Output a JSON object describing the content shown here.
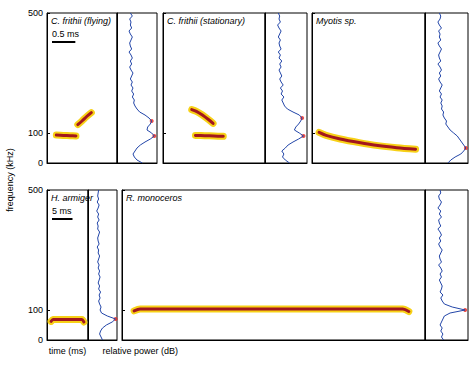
{
  "chart_data": [
    {
      "type": "spectrogram",
      "title": "C. frithii (flying)",
      "xlim": [
        0,
        1.5
      ],
      "ylim": [
        0,
        500
      ],
      "yticks": [
        0,
        100,
        500
      ],
      "tick_labels": "y",
      "scale_bar": {
        "length": 0.5,
        "label": "0.5 ms"
      },
      "call": {
        "color": "#a3171d",
        "segments": [
          {
            "time": [
              0.2,
              0.35,
              0.5,
              0.62
            ],
            "freq": [
              93,
              92,
              91,
              90
            ]
          },
          {
            "time": [
              0.66,
              0.75,
              0.85,
              0.95
            ],
            "freq": [
              128,
              140,
              155,
              168
            ]
          }
        ]
      },
      "spectrum": {
        "color": "#2346a8",
        "xlim": [
          -60,
          0
        ],
        "freq": [
          0,
          10,
          20,
          30,
          40,
          50,
          60,
          70,
          80,
          90,
          100,
          110,
          120,
          130,
          140,
          150,
          160,
          170,
          180,
          190,
          200,
          210,
          220,
          230,
          240,
          250,
          260,
          270,
          280,
          290,
          300,
          310,
          320,
          330,
          340,
          350,
          360,
          370,
          380,
          390,
          400,
          410,
          420,
          430,
          440,
          450,
          460,
          470,
          480,
          490,
          500
        ],
        "power": [
          -22,
          -30,
          -34,
          -36,
          -33,
          -30,
          -25,
          -18,
          -10,
          -4,
          -8,
          -15,
          -14,
          -10,
          -8,
          -12,
          -18,
          -26,
          -30,
          -33,
          -35,
          -34,
          -37,
          -35,
          -38,
          -36,
          -39,
          -37,
          -40,
          -38,
          -36,
          -39,
          -41,
          -38,
          -40,
          -37,
          -39,
          -42,
          -38,
          -40,
          -41,
          -39,
          -37,
          -40,
          -42,
          -38,
          -40,
          -39,
          -41,
          -37,
          -40
        ],
        "peaks": {
          "color": "#e8251e",
          "power": [
            -4,
            -8
          ],
          "freq": [
            90,
            140
          ]
        }
      }
    },
    {
      "type": "spectrogram",
      "title": "C. frithii (stationary)",
      "xlim": [
        0,
        2.2
      ],
      "ylim": [
        0,
        500
      ],
      "yticks": [
        0,
        100,
        500
      ],
      "tick_labels": false,
      "call": {
        "color": "#a3171d",
        "segments": [
          {
            "time": [
              0.62,
              0.72,
              0.85,
              0.98,
              1.08
            ],
            "freq": [
              178,
              172,
              160,
              145,
              132
            ]
          },
          {
            "time": [
              0.7,
              0.9,
              1.1,
              1.3
            ],
            "freq": [
              92,
              91,
              90,
              89
            ]
          }
        ]
      },
      "spectrum": {
        "color": "#2346a8",
        "xlim": [
          -60,
          0
        ],
        "freq": [
          0,
          10,
          20,
          30,
          40,
          50,
          60,
          70,
          80,
          90,
          100,
          110,
          120,
          130,
          140,
          150,
          160,
          170,
          180,
          190,
          200,
          210,
          220,
          230,
          240,
          250,
          260,
          270,
          280,
          290,
          300,
          310,
          320,
          330,
          340,
          350,
          360,
          370,
          380,
          390,
          400,
          410,
          420,
          430,
          440,
          450,
          460,
          470,
          480,
          490,
          500
        ],
        "power": [
          -25,
          -31,
          -35,
          -33,
          -36,
          -31,
          -27,
          -20,
          -12,
          -5,
          -11,
          -18,
          -16,
          -12,
          -9,
          -7,
          -11,
          -20,
          -28,
          -32,
          -34,
          -36,
          -33,
          -37,
          -35,
          -38,
          -34,
          -37,
          -39,
          -36,
          -38,
          -40,
          -37,
          -39,
          -36,
          -40,
          -38,
          -41,
          -37,
          -39,
          -40,
          -38,
          -41,
          -39,
          -37,
          -40,
          -42,
          -38,
          -40,
          -39,
          -41
        ],
        "peaks": {
          "color": "#e8251e",
          "power": [
            -5,
            -7
          ],
          "freq": [
            90,
            150
          ]
        }
      }
    },
    {
      "type": "spectrogram",
      "title": "Myotis sp.",
      "xlim": [
        0,
        2.4
      ],
      "ylim": [
        0,
        500
      ],
      "yticks": [
        0,
        100,
        500
      ],
      "tick_labels": false,
      "call": {
        "color": "#a3171d",
        "segments": [
          {
            "time": [
              0.15,
              0.3,
              0.6,
              1.0,
              1.4,
              1.8,
              2.2
            ],
            "freq": [
              102,
              92,
              80,
              68,
              58,
              51,
              46
            ]
          }
        ]
      },
      "spectrum": {
        "color": "#2346a8",
        "xlim": [
          -60,
          0
        ],
        "freq": [
          0,
          10,
          20,
          30,
          40,
          50,
          60,
          70,
          80,
          90,
          100,
          110,
          120,
          130,
          140,
          150,
          160,
          170,
          180,
          190,
          200,
          210,
          220,
          230,
          240,
          250,
          260,
          270,
          280,
          290,
          300,
          310,
          320,
          330,
          340,
          350,
          360,
          370,
          380,
          390,
          400,
          410,
          420,
          430,
          440,
          450,
          460,
          470,
          480,
          490,
          500
        ],
        "power": [
          -28,
          -24,
          -18,
          -10,
          -6,
          -3,
          -6,
          -9,
          -12,
          -15,
          -20,
          -25,
          -28,
          -31,
          -30,
          -33,
          -35,
          -34,
          -37,
          -36,
          -38,
          -36,
          -39,
          -37,
          -40,
          -38,
          -36,
          -39,
          -41,
          -38,
          -40,
          -37,
          -39,
          -42,
          -38,
          -40,
          -41,
          -39,
          -37,
          -40,
          -42,
          -38,
          -40,
          -39,
          -41,
          -37,
          -40,
          -42,
          -39,
          -38,
          -40
        ],
        "peaks": {
          "color": "#e8251e",
          "power": [
            -3
          ],
          "freq": [
            50
          ]
        }
      }
    },
    {
      "type": "spectrogram",
      "title": "H. armiger",
      "xlim": [
        0,
        10
      ],
      "ylim": [
        0,
        500
      ],
      "yticks": [
        0,
        100,
        500
      ],
      "tick_labels": "y",
      "xlabel": "time (ms)",
      "spectrum_xlabel": "relative power (dB)",
      "ylabel": "frequency (kHz)",
      "scale_bar": {
        "length": 5,
        "label": "5 ms"
      },
      "call": {
        "color": "#a3171d",
        "segments": [
          {
            "time": [
              1.0,
              1.5,
              3,
              5,
              7,
              8.5,
              9.0
            ],
            "freq": [
              62,
              68,
              68.5,
              68.5,
              68.5,
              68,
              60
            ]
          }
        ]
      },
      "spectrum": {
        "color": "#2346a8",
        "xlim": [
          -60,
          0
        ],
        "freq": [
          0,
          10,
          20,
          30,
          40,
          50,
          60,
          70,
          80,
          90,
          100,
          110,
          120,
          130,
          140,
          150,
          160,
          170,
          180,
          190,
          200,
          210,
          220,
          230,
          240,
          250,
          260,
          270,
          280,
          290,
          300,
          310,
          320,
          330,
          340,
          350,
          360,
          370,
          380,
          390,
          400,
          410,
          420,
          430,
          440,
          450,
          460,
          470,
          480,
          490,
          500
        ],
        "power": [
          -30,
          -33,
          -36,
          -34,
          -30,
          -22,
          -10,
          -3,
          -20,
          -32,
          -35,
          -33,
          -36,
          -38,
          -35,
          -37,
          -34,
          -38,
          -36,
          -39,
          -37,
          -35,
          -38,
          -36,
          -39,
          -37,
          -40,
          -38,
          -36,
          -39,
          -38,
          -41,
          -37,
          -39,
          -40,
          -38,
          -36,
          -40,
          -39,
          -41,
          -37,
          -40,
          -38,
          -42,
          -39,
          -37,
          -41,
          -38,
          -40,
          -39,
          -38
        ],
        "peaks": {
          "color": "#e8251e",
          "power": [
            -3
          ],
          "freq": [
            70
          ]
        }
      }
    },
    {
      "type": "spectrogram",
      "title": "R. monoceros",
      "xlim": [
        0,
        75
      ],
      "ylim": [
        0,
        500
      ],
      "yticks": [
        0,
        100,
        500
      ],
      "tick_labels": false,
      "call": {
        "color": "#a3171d",
        "segments": [
          {
            "time": [
              3,
              4.5,
              20,
              40,
              60,
              69.5,
              71
            ],
            "freq": [
              97,
              103,
              103.5,
              103.5,
              103.5,
              103,
              95
            ]
          }
        ]
      },
      "spectrum": {
        "color": "#2346a8",
        "xlim": [
          -60,
          0
        ],
        "freq": [
          0,
          10,
          20,
          30,
          40,
          50,
          60,
          70,
          80,
          90,
          100,
          110,
          120,
          130,
          140,
          150,
          160,
          170,
          180,
          190,
          200,
          210,
          220,
          230,
          240,
          250,
          260,
          270,
          280,
          290,
          300,
          310,
          320,
          330,
          340,
          350,
          360,
          370,
          380,
          390,
          400,
          410,
          420,
          430,
          440,
          450,
          460,
          470,
          480,
          490,
          500
        ],
        "power": [
          -34,
          -37,
          -35,
          -38,
          -36,
          -39,
          -37,
          -35,
          -33,
          -25,
          -4,
          -22,
          -33,
          -36,
          -38,
          -35,
          -39,
          -37,
          -36,
          -38,
          -40,
          -37,
          -39,
          -36,
          -38,
          -41,
          -37,
          -39,
          -40,
          -38,
          -36,
          -39,
          -41,
          -38,
          -40,
          -37,
          -39,
          -42,
          -38,
          -40,
          -41,
          -37,
          -40,
          -38,
          -42,
          -39,
          -37,
          -40,
          -41,
          -38,
          -39
        ],
        "peaks": {
          "color": "#e8251e",
          "power": [
            -4
          ],
          "freq": [
            100
          ]
        }
      }
    }
  ]
}
